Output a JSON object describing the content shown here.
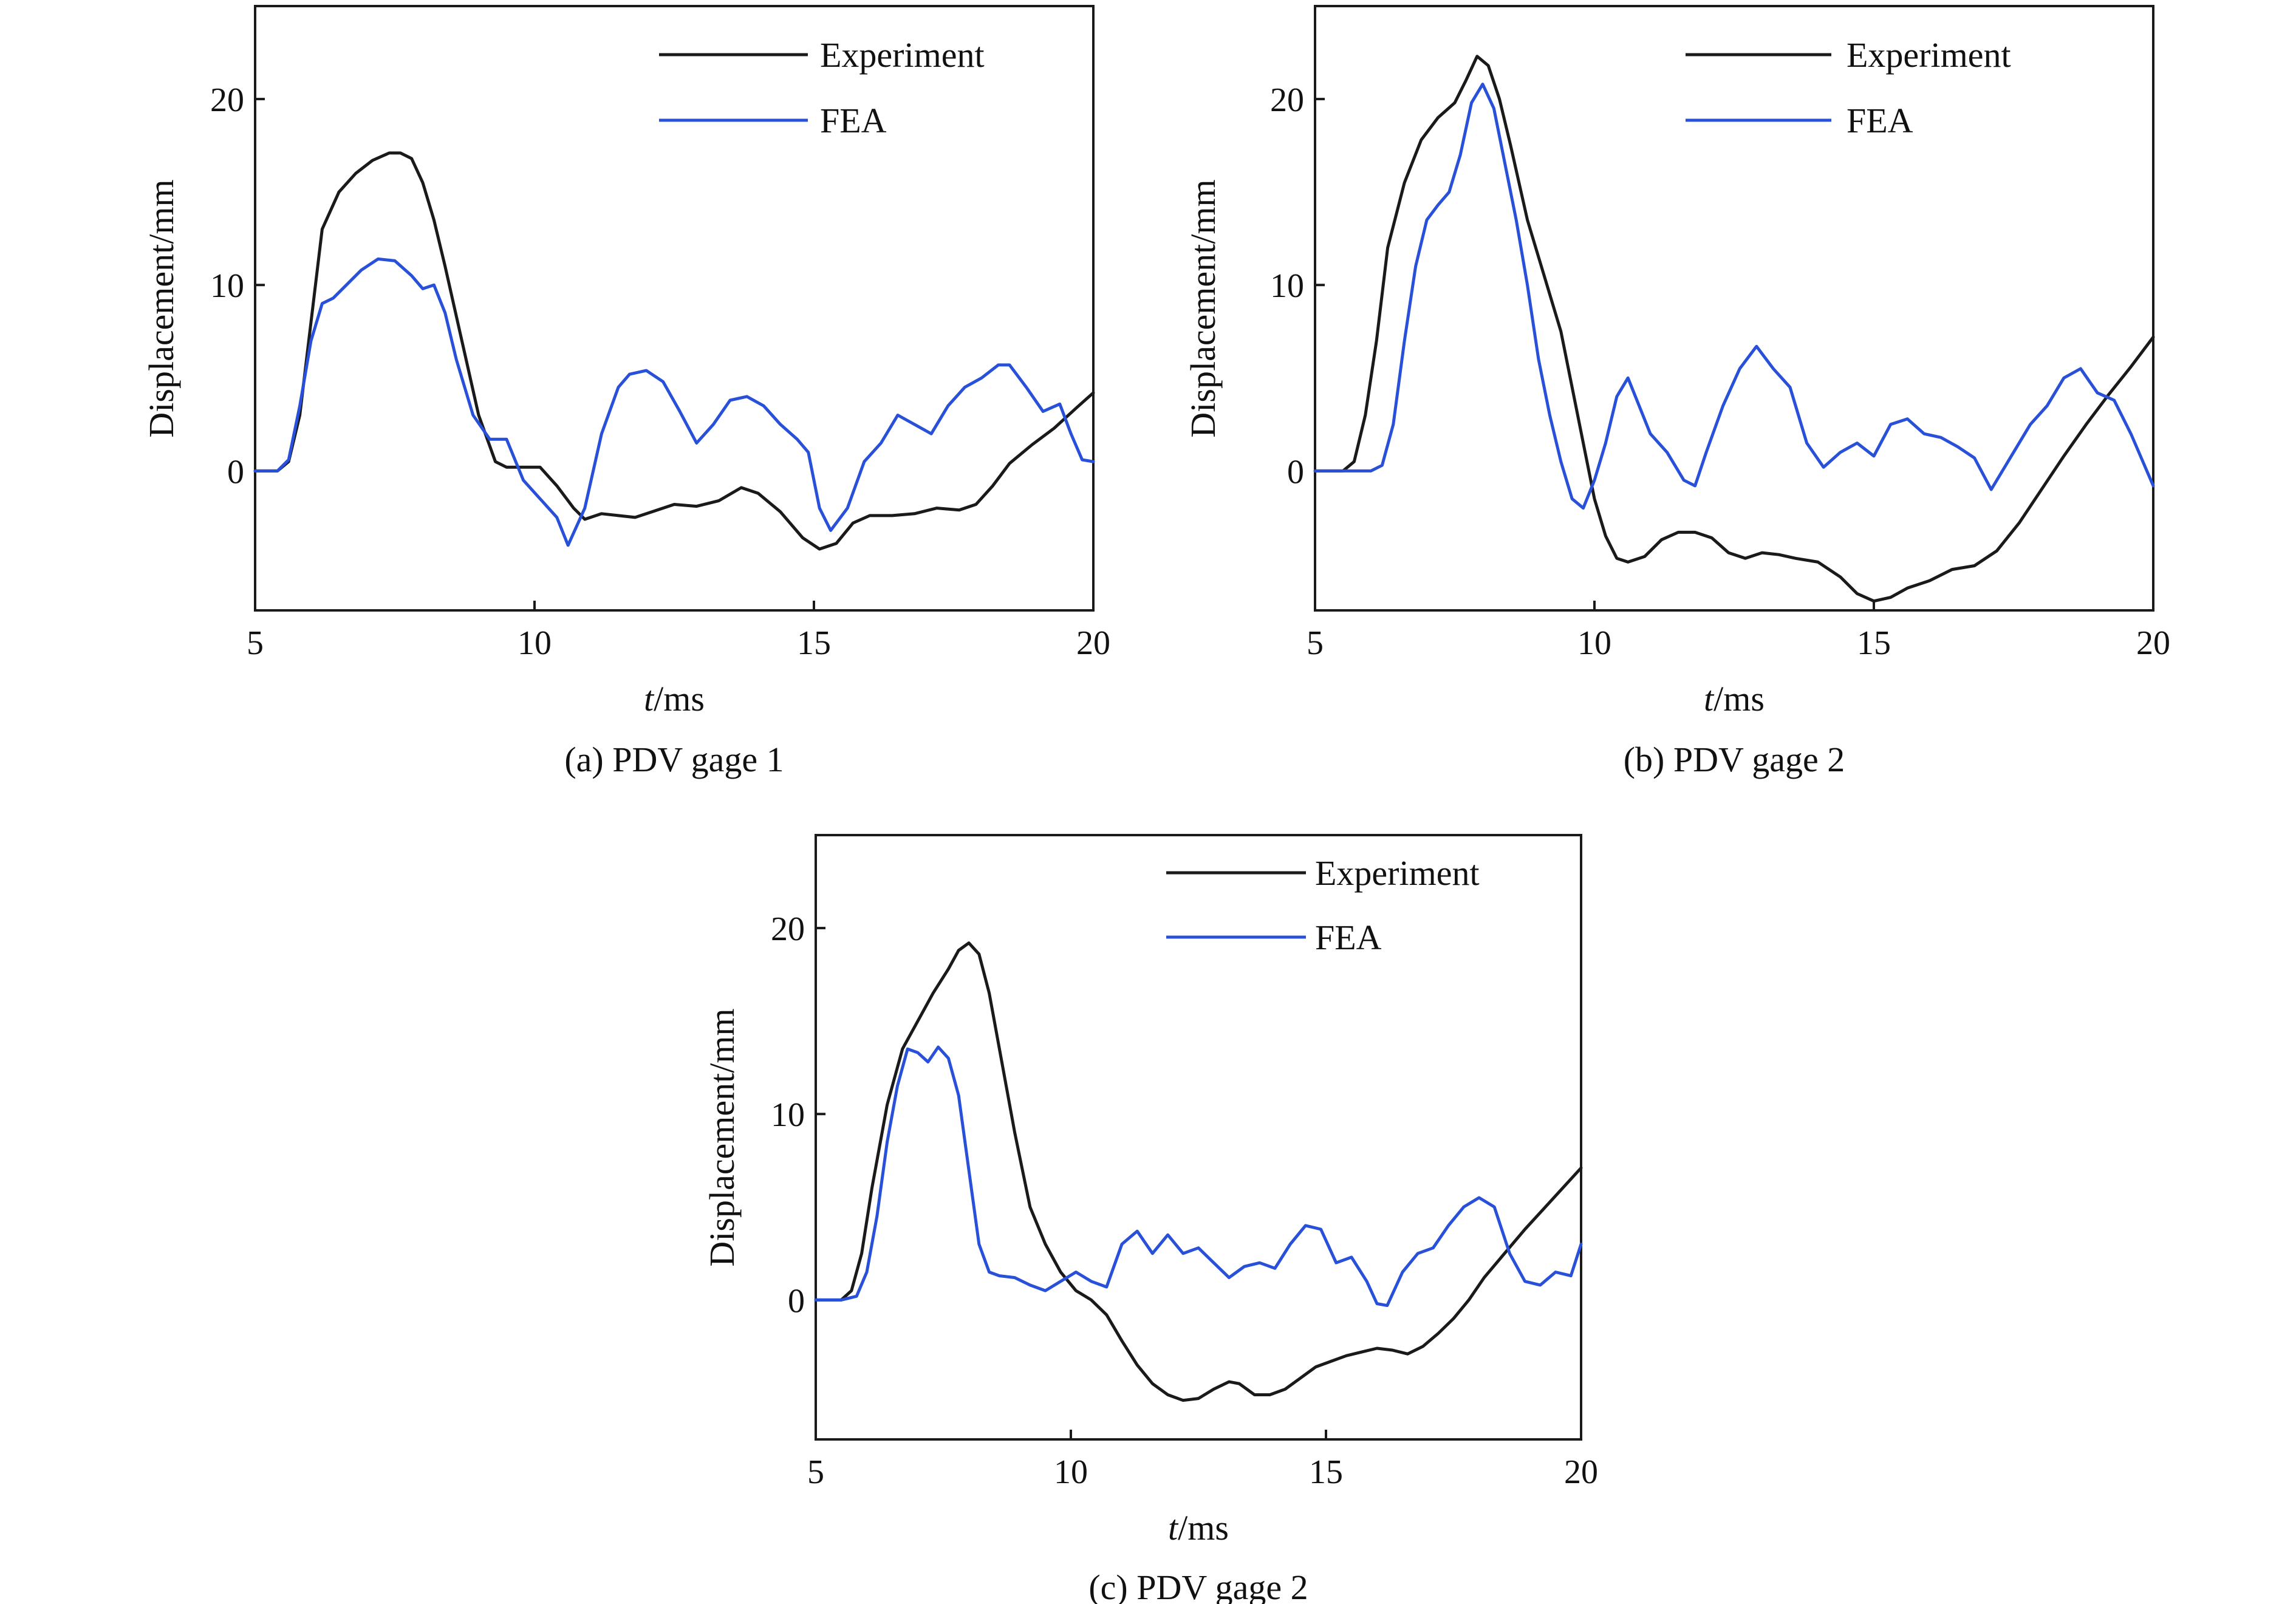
{
  "colors": {
    "experiment": "#1a1a1a",
    "fea": "#2850d8",
    "axis": "#1a1a1a"
  },
  "chart_data": [
    {
      "type": "line",
      "caption": "(a) PDV gage 1",
      "xlabel_italic": "t",
      "xlabel_unit": "/ms",
      "ylabel": "Displacement/mm",
      "xlim": [
        5,
        20
      ],
      "ylim": [
        -7.5,
        25
      ],
      "xticks": [
        5,
        10,
        15,
        20
      ],
      "yticks": [
        0,
        10,
        20
      ],
      "grid": false,
      "legend": "top-right",
      "series": [
        {
          "name": "Experiment",
          "color": "#1a1a1a",
          "x": [
            5.0,
            5.4,
            5.6,
            5.8,
            6.0,
            6.2,
            6.5,
            6.8,
            7.1,
            7.4,
            7.6,
            7.8,
            8.0,
            8.2,
            8.4,
            8.7,
            9.0,
            9.3,
            9.5,
            9.8,
            10.1,
            10.4,
            10.7,
            10.9,
            11.2,
            11.5,
            11.8,
            12.1,
            12.5,
            12.9,
            13.3,
            13.7,
            14.0,
            14.4,
            14.8,
            15.1,
            15.4,
            15.7,
            16.0,
            16.4,
            16.8,
            17.2,
            17.6,
            17.9,
            18.2,
            18.5,
            18.9,
            19.3,
            19.7,
            20.0
          ],
          "y": [
            0,
            0,
            0.5,
            3,
            8,
            13,
            15,
            16,
            16.7,
            17.1,
            17.1,
            16.8,
            15.5,
            13.5,
            11.0,
            7.0,
            3.0,
            0.5,
            0.2,
            0.2,
            0.2,
            -0.8,
            -2.0,
            -2.6,
            -2.3,
            -2.4,
            -2.5,
            -2.2,
            -1.8,
            -1.9,
            -1.6,
            -0.9,
            -1.2,
            -2.2,
            -3.6,
            -4.2,
            -3.9,
            -2.8,
            -2.4,
            -2.4,
            -2.3,
            -2.0,
            -2.1,
            -1.8,
            -0.8,
            0.4,
            1.4,
            2.3,
            3.4,
            4.2
          ]
        },
        {
          "name": "FEA",
          "color": "#2850d8",
          "x": [
            5.0,
            5.4,
            5.6,
            5.8,
            6.0,
            6.2,
            6.4,
            6.6,
            6.9,
            7.2,
            7.5,
            7.8,
            8.0,
            8.2,
            8.4,
            8.6,
            8.9,
            9.2,
            9.5,
            9.8,
            10.1,
            10.4,
            10.6,
            10.9,
            11.2,
            11.5,
            11.7,
            12.0,
            12.3,
            12.6,
            12.9,
            13.2,
            13.5,
            13.8,
            14.1,
            14.4,
            14.7,
            14.9,
            15.1,
            15.3,
            15.6,
            15.9,
            16.2,
            16.5,
            16.8,
            17.1,
            17.4,
            17.7,
            18.0,
            18.3,
            18.5,
            18.8,
            19.1,
            19.4,
            19.6,
            19.8,
            20.0
          ],
          "y": [
            0,
            0,
            0.6,
            3.5,
            7,
            9,
            9.3,
            9.9,
            10.8,
            11.4,
            11.3,
            10.5,
            9.8,
            10.0,
            8.5,
            6.0,
            3.0,
            1.7,
            1.7,
            -0.5,
            -1.5,
            -2.5,
            -4.0,
            -2.0,
            2.0,
            4.5,
            5.2,
            5.4,
            4.8,
            3.2,
            1.5,
            2.5,
            3.8,
            4.0,
            3.5,
            2.5,
            1.7,
            1.0,
            -2.0,
            -3.2,
            -2.0,
            0.5,
            1.5,
            3.0,
            2.5,
            2.0,
            3.5,
            4.5,
            5.0,
            5.7,
            5.7,
            4.5,
            3.2,
            3.6,
            2.0,
            0.6,
            0.5
          ]
        }
      ]
    },
    {
      "type": "line",
      "caption": "(b) PDV gage 2",
      "xlabel_italic": "t",
      "xlabel_unit": "/ms",
      "ylabel": "Displacement/mm",
      "xlim": [
        5,
        20
      ],
      "ylim": [
        -7.5,
        25
      ],
      "xticks": [
        5,
        10,
        15,
        20
      ],
      "yticks": [
        0,
        10,
        20
      ],
      "grid": false,
      "legend": "top-right",
      "series": [
        {
          "name": "Experiment",
          "color": "#1a1a1a",
          "x": [
            5.0,
            5.5,
            5.7,
            5.9,
            6.1,
            6.3,
            6.6,
            6.9,
            7.2,
            7.5,
            7.7,
            7.9,
            8.1,
            8.3,
            8.5,
            8.8,
            9.1,
            9.4,
            9.6,
            9.8,
            10.0,
            10.2,
            10.4,
            10.6,
            10.9,
            11.2,
            11.5,
            11.8,
            12.1,
            12.4,
            12.7,
            13.0,
            13.3,
            13.6,
            14.0,
            14.4,
            14.7,
            15.0,
            15.3,
            15.6,
            16.0,
            16.4,
            16.8,
            17.2,
            17.6,
            18.0,
            18.4,
            18.8,
            19.2,
            19.6,
            20.0
          ],
          "y": [
            0,
            0,
            0.5,
            3,
            7,
            12,
            15.5,
            17.8,
            19.0,
            19.8,
            21.0,
            22.3,
            21.8,
            20.0,
            17.5,
            13.5,
            10.5,
            7.5,
            4.5,
            1.5,
            -1.5,
            -3.5,
            -4.7,
            -4.9,
            -4.6,
            -3.7,
            -3.3,
            -3.3,
            -3.6,
            -4.4,
            -4.7,
            -4.4,
            -4.5,
            -4.7,
            -4.9,
            -5.7,
            -6.6,
            -7.0,
            -6.8,
            -6.3,
            -5.9,
            -5.3,
            -5.1,
            -4.3,
            -2.8,
            -1.0,
            0.8,
            2.5,
            4.1,
            5.6,
            7.2
          ]
        },
        {
          "name": "FEA",
          "color": "#2850d8",
          "x": [
            5.0,
            5.5,
            6.0,
            6.2,
            6.4,
            6.6,
            6.8,
            7.0,
            7.2,
            7.4,
            7.6,
            7.8,
            8.0,
            8.2,
            8.4,
            8.6,
            8.8,
            9.0,
            9.2,
            9.4,
            9.6,
            9.8,
            10.0,
            10.2,
            10.4,
            10.6,
            10.8,
            11.0,
            11.3,
            11.6,
            11.8,
            12.0,
            12.3,
            12.6,
            12.9,
            13.2,
            13.5,
            13.8,
            14.1,
            14.4,
            14.7,
            15.0,
            15.3,
            15.6,
            15.9,
            16.2,
            16.5,
            16.8,
            17.1,
            17.4,
            17.8,
            18.1,
            18.4,
            18.7,
            19.0,
            19.3,
            19.6,
            20.0
          ],
          "y": [
            0,
            0,
            0,
            0.3,
            2.5,
            7.0,
            11.0,
            13.5,
            14.3,
            15.0,
            17.0,
            19.8,
            20.8,
            19.5,
            16.5,
            13.5,
            10.0,
            6.0,
            3.0,
            0.5,
            -1.5,
            -2.0,
            -0.5,
            1.5,
            4.0,
            5.0,
            3.5,
            2.0,
            1.0,
            -0.5,
            -0.8,
            1.0,
            3.5,
            5.5,
            6.7,
            5.5,
            4.5,
            1.5,
            0.2,
            1.0,
            1.5,
            0.8,
            2.5,
            2.8,
            2.0,
            1.8,
            1.3,
            0.7,
            -1.0,
            0.5,
            2.5,
            3.5,
            5.0,
            5.5,
            4.2,
            3.8,
            2.0,
            -0.8
          ]
        }
      ]
    },
    {
      "type": "line",
      "caption": "(c) PDV gage 2",
      "xlabel_italic": "t",
      "xlabel_unit": "/ms",
      "ylabel": "Displacement/mm",
      "xlim": [
        5,
        20
      ],
      "ylim": [
        -7.5,
        25
      ],
      "xticks": [
        5,
        10,
        15,
        20
      ],
      "yticks": [
        0,
        10,
        20
      ],
      "grid": false,
      "legend": "top-right",
      "series": [
        {
          "name": "Experiment",
          "color": "#1a1a1a",
          "x": [
            5.0,
            5.5,
            5.7,
            5.9,
            6.1,
            6.4,
            6.7,
            7.0,
            7.3,
            7.6,
            7.8,
            8.0,
            8.2,
            8.4,
            8.6,
            8.9,
            9.2,
            9.5,
            9.8,
            10.1,
            10.4,
            10.7,
            11.0,
            11.3,
            11.6,
            11.9,
            12.2,
            12.5,
            12.8,
            13.1,
            13.3,
            13.6,
            13.9,
            14.2,
            14.5,
            14.8,
            15.1,
            15.4,
            15.7,
            16.0,
            16.3,
            16.6,
            16.9,
            17.2,
            17.5,
            17.8,
            18.1,
            18.5,
            18.9,
            19.3,
            19.7,
            20.0
          ],
          "y": [
            0,
            0,
            0.5,
            2.5,
            6.0,
            10.5,
            13.5,
            15.0,
            16.5,
            17.8,
            18.8,
            19.2,
            18.6,
            16.5,
            13.5,
            9.0,
            5.0,
            3.0,
            1.5,
            0.5,
            0.0,
            -0.8,
            -2.2,
            -3.5,
            -4.5,
            -5.1,
            -5.4,
            -5.3,
            -4.8,
            -4.4,
            -4.5,
            -5.1,
            -5.1,
            -4.8,
            -4.2,
            -3.6,
            -3.3,
            -3.0,
            -2.8,
            -2.6,
            -2.7,
            -2.9,
            -2.5,
            -1.8,
            -1.0,
            0.0,
            1.2,
            2.5,
            3.8,
            5.0,
            6.2,
            7.1
          ]
        },
        {
          "name": "FEA",
          "color": "#2850d8",
          "x": [
            5.0,
            5.5,
            5.8,
            6.0,
            6.2,
            6.4,
            6.6,
            6.8,
            7.0,
            7.2,
            7.4,
            7.6,
            7.8,
            8.0,
            8.2,
            8.4,
            8.6,
            8.9,
            9.2,
            9.5,
            9.8,
            10.1,
            10.4,
            10.7,
            11.0,
            11.3,
            11.6,
            11.9,
            12.2,
            12.5,
            12.8,
            13.1,
            13.4,
            13.7,
            14.0,
            14.3,
            14.6,
            14.9,
            15.2,
            15.5,
            15.8,
            16.0,
            16.2,
            16.5,
            16.8,
            17.1,
            17.4,
            17.7,
            18.0,
            18.3,
            18.6,
            18.9,
            19.2,
            19.5,
            19.8,
            20.0
          ],
          "y": [
            0,
            0,
            0.2,
            1.5,
            4.5,
            8.5,
            11.5,
            13.5,
            13.3,
            12.8,
            13.6,
            13.0,
            11.0,
            7.0,
            3.0,
            1.5,
            1.3,
            1.2,
            0.8,
            0.5,
            1.0,
            1.5,
            1.0,
            0.7,
            3.0,
            3.7,
            2.5,
            3.5,
            2.5,
            2.8,
            2.0,
            1.2,
            1.8,
            2.0,
            1.7,
            3.0,
            4.0,
            3.8,
            2.0,
            2.3,
            1.0,
            -0.2,
            -0.3,
            1.5,
            2.5,
            2.8,
            4.0,
            5.0,
            5.5,
            5.0,
            2.5,
            1.0,
            0.8,
            1.5,
            1.3,
            3.0
          ]
        }
      ]
    }
  ]
}
